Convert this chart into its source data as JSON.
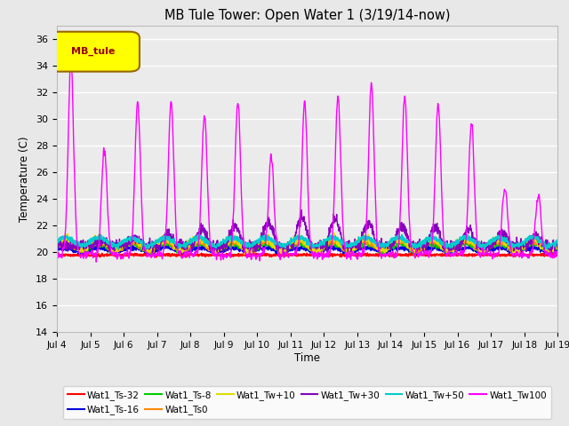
{
  "title": "MB Tule Tower: Open Water 1 (3/19/14-now)",
  "xlabel": "Time",
  "ylabel": "Temperature (C)",
  "ylim": [
    14,
    37
  ],
  "yticks": [
    14,
    16,
    18,
    20,
    22,
    24,
    26,
    28,
    30,
    32,
    34,
    36
  ],
  "xtick_labels": [
    "Jul 4",
    "Jul 5",
    "Jul 6",
    "Jul 7",
    "Jul 8",
    "Jul 9",
    "Jul 10",
    "Jul 11",
    "Jul 12",
    "Jul 13",
    "Jul 14",
    "Jul 15",
    "Jul 16",
    "Jul 17",
    "Jul 18",
    "Jul 19"
  ],
  "bg_color": "#e8e8e8",
  "plot_bg_color": "#ebebeb",
  "legend_label": "MB_tule",
  "legend_box_facecolor": "#ffff00",
  "legend_box_edgecolor": "#996600",
  "legend_text_color": "#990000",
  "colors": {
    "Wat1_Ts-32": "#ff0000",
    "Wat1_Ts-16": "#0000dd",
    "Wat1_Ts-8": "#00cc00",
    "Wat1_Ts0": "#ff8800",
    "Wat1_Tw+10": "#dddd00",
    "Wat1_Tw+30": "#8800bb",
    "Wat1_Tw+50": "#00cccc",
    "Wat1_Tw100": "#ff00ff"
  }
}
